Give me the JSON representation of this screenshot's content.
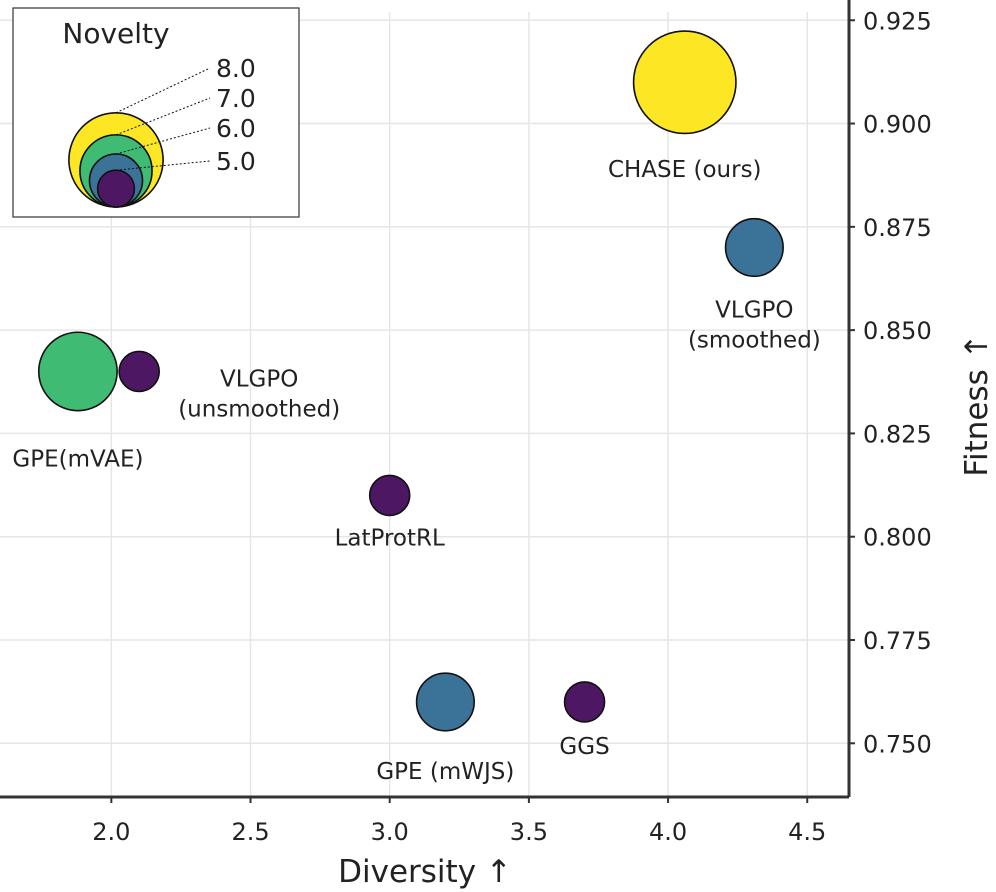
{
  "chart_data": {
    "type": "scatter",
    "xlabel": "Diversity ↑",
    "ylabel": "Fitness ↑",
    "xlim": [
      1.6,
      4.65
    ],
    "ylim": [
      0.737,
      0.927
    ],
    "x_ticks": [
      "2.0",
      "2.5",
      "3.0",
      "3.5",
      "4.0",
      "4.5"
    ],
    "y_ticks": [
      "0.750",
      "0.775",
      "0.800",
      "0.825",
      "0.850",
      "0.875",
      "0.900",
      "0.925"
    ],
    "y_axis_position": "right",
    "grid": true,
    "size_encoding": "Novelty",
    "color_encoding": "Novelty",
    "colormap": "viridis",
    "points": [
      {
        "label": "CHASE (ours)",
        "x": 4.06,
        "y": 0.91,
        "novelty": 8.0,
        "color": "#fde725"
      },
      {
        "label": "VLGPO\n(smoothed)",
        "x": 4.31,
        "y": 0.87,
        "novelty": 6.0,
        "color": "#3b7398"
      },
      {
        "label": "GPE(mVAE)",
        "x": 1.88,
        "y": 0.84,
        "novelty": 7.0,
        "color": "#3fbb73"
      },
      {
        "label": "VLGPO\n(unsmoothed)",
        "x": 2.1,
        "y": 0.84,
        "novelty": 5.0,
        "color": "#4e1763"
      },
      {
        "label": "LatProtRL",
        "x": 3.0,
        "y": 0.81,
        "novelty": 5.0,
        "color": "#4e1763"
      },
      {
        "label": "GPE (mWJS)",
        "x": 3.2,
        "y": 0.76,
        "novelty": 6.0,
        "color": "#3b7398"
      },
      {
        "label": "GGS",
        "x": 3.7,
        "y": 0.76,
        "novelty": 5.0,
        "color": "#4e1763"
      }
    ],
    "legend": {
      "title": "Novelty",
      "placement": "top-left",
      "entries": [
        {
          "label": "8.0",
          "novelty": 8.0,
          "color": "#fde725"
        },
        {
          "label": "7.0",
          "novelty": 7.0,
          "color": "#3fbb73"
        },
        {
          "label": "6.0",
          "novelty": 6.0,
          "color": "#3b7398"
        },
        {
          "label": "5.0",
          "novelty": 5.0,
          "color": "#4e1763"
        }
      ]
    }
  }
}
